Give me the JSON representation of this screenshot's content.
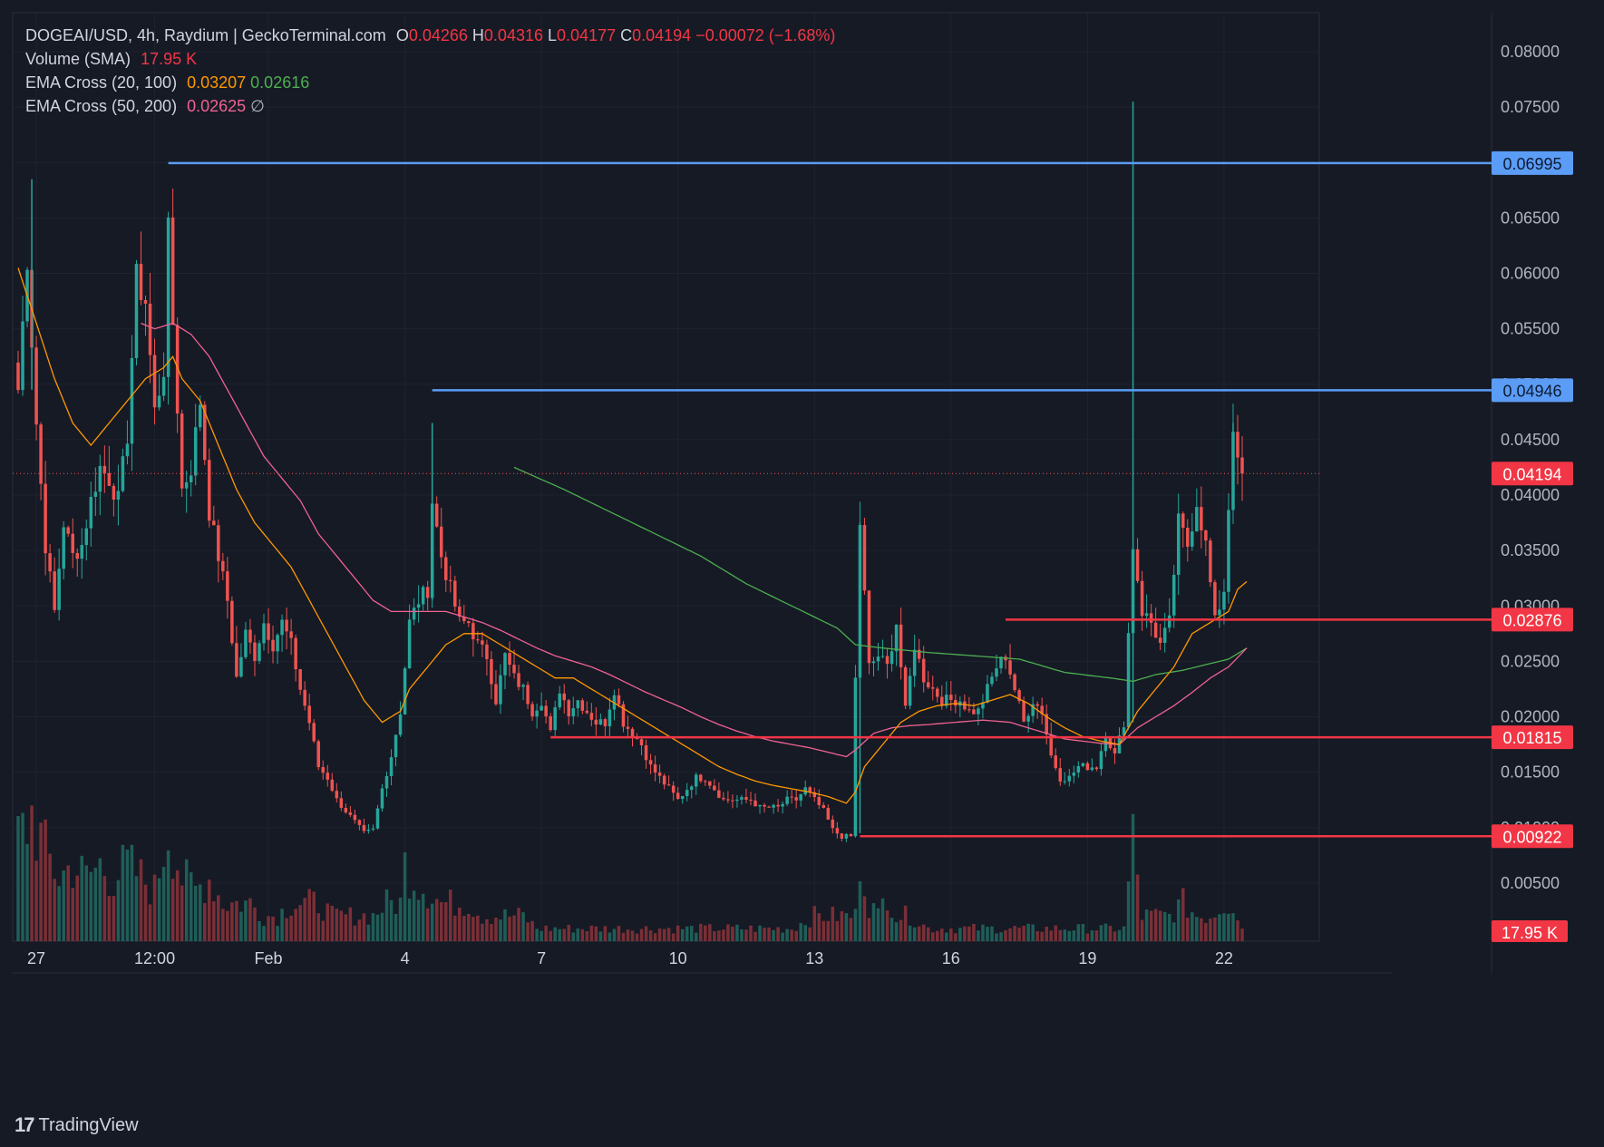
{
  "header": {
    "symbol": "DOGEAI/USD, 4h, Raydium | GeckoTerminal.com",
    "open_label": "O",
    "open": "0.04266",
    "high_label": "H",
    "high": "0.04316",
    "low_label": "L",
    "low": "0.04177",
    "close_label": "C",
    "close": "0.04194",
    "change": "−0.00072 (−1.68%)"
  },
  "indicators": {
    "volume_label": "Volume (SMA)",
    "volume_value": "17.95 K",
    "ema1_label": "EMA Cross (20, 100)",
    "ema1_fast": "0.03207",
    "ema1_slow": "0.02616",
    "ema2_label": "EMA Cross (50, 200)",
    "ema2_fast": "0.02625",
    "ema2_slow": "∅"
  },
  "brand": {
    "name": "TradingView",
    "logo_text": "17"
  },
  "colors": {
    "background": "#161a25",
    "up": "#26a69a",
    "down": "#ef5350",
    "ema20": "#ff9800",
    "ema100": "#4caf50",
    "ema50": "#f06292",
    "blue_line": "#5b9cf6",
    "red_line": "#f23645"
  },
  "chart_data": {
    "type": "candlestick",
    "interval": "4h",
    "y_range": [
      0.0,
      0.0825
    ],
    "y_ticks": [
      "0.00500",
      "0.01000",
      "0.01500",
      "0.02000",
      "0.02500",
      "0.03000",
      "0.03500",
      "0.04000",
      "0.04500",
      "0.05000",
      "0.05500",
      "0.06000",
      "0.06500",
      "0.07000",
      "0.07500",
      "0.08000"
    ],
    "x_ticks": [
      {
        "label": "27",
        "bar": 4
      },
      {
        "label": "12:00",
        "bar": 30
      },
      {
        "label": "Feb",
        "bar": 55
      },
      {
        "label": "4",
        "bar": 85
      },
      {
        "label": "7",
        "bar": 115
      },
      {
        "label": "10",
        "bar": 145
      },
      {
        "label": "13",
        "bar": 175
      },
      {
        "label": "16",
        "bar": 205
      },
      {
        "label": "19",
        "bar": 235
      },
      {
        "label": "22",
        "bar": 265
      }
    ],
    "last_price": "0.04194",
    "volume_last": "17.95 K",
    "horizontal_levels": [
      {
        "price": 0.06995,
        "label": "0.06995",
        "color": "blue",
        "from_bar": 33
      },
      {
        "price": 0.04946,
        "label": "0.04946",
        "color": "blue",
        "from_bar": 91
      },
      {
        "price": 0.02876,
        "label": "0.02876",
        "color": "red",
        "from_bar": 217
      },
      {
        "price": 0.01815,
        "label": "0.01815",
        "color": "red",
        "from_bar": 117
      },
      {
        "price": 0.00922,
        "label": "0.00922",
        "color": "red",
        "from_bar": 185
      }
    ],
    "close_anchors": [
      [
        0,
        0.0495
      ],
      [
        2,
        0.0615
      ],
      [
        4,
        0.0465
      ],
      [
        6,
        0.0355
      ],
      [
        8,
        0.0295
      ],
      [
        10,
        0.0375
      ],
      [
        12,
        0.0345
      ],
      [
        14,
        0.0355
      ],
      [
        16,
        0.0395
      ],
      [
        18,
        0.0425
      ],
      [
        20,
        0.0415
      ],
      [
        22,
        0.0395
      ],
      [
        24,
        0.0455
      ],
      [
        26,
        0.0595
      ],
      [
        28,
        0.0575
      ],
      [
        30,
        0.0475
      ],
      [
        32,
        0.0515
      ],
      [
        33,
        0.0635
      ],
      [
        34,
        0.0555
      ],
      [
        36,
        0.0405
      ],
      [
        38,
        0.0425
      ],
      [
        40,
        0.0485
      ],
      [
        42,
        0.0385
      ],
      [
        44,
        0.0345
      ],
      [
        46,
        0.0305
      ],
      [
        48,
        0.0235
      ],
      [
        50,
        0.0275
      ],
      [
        52,
        0.0255
      ],
      [
        54,
        0.0285
      ],
      [
        56,
        0.0265
      ],
      [
        58,
        0.0285
      ],
      [
        60,
        0.0265
      ],
      [
        62,
        0.0225
      ],
      [
        64,
        0.0195
      ],
      [
        66,
        0.0155
      ],
      [
        68,
        0.0145
      ],
      [
        70,
        0.0125
      ],
      [
        72,
        0.0115
      ],
      [
        74,
        0.0105
      ],
      [
        76,
        0.0095
      ],
      [
        78,
        0.0098
      ],
      [
        80,
        0.0135
      ],
      [
        82,
        0.0165
      ],
      [
        84,
        0.0205
      ],
      [
        86,
        0.0285
      ],
      [
        88,
        0.0305
      ],
      [
        90,
        0.0315
      ],
      [
        91,
        0.0395
      ],
      [
        93,
        0.0345
      ],
      [
        95,
        0.0315
      ],
      [
        97,
        0.0285
      ],
      [
        99,
        0.0285
      ],
      [
        101,
        0.0265
      ],
      [
        103,
        0.0255
      ],
      [
        105,
        0.0215
      ],
      [
        107,
        0.0255
      ],
      [
        109,
        0.0235
      ],
      [
        111,
        0.0225
      ],
      [
        113,
        0.0205
      ],
      [
        115,
        0.0215
      ],
      [
        117,
        0.0185
      ],
      [
        119,
        0.0225
      ],
      [
        121,
        0.0205
      ],
      [
        123,
        0.0215
      ],
      [
        125,
        0.0205
      ],
      [
        127,
        0.0195
      ],
      [
        129,
        0.0195
      ],
      [
        131,
        0.0225
      ],
      [
        133,
        0.0195
      ],
      [
        135,
        0.0185
      ],
      [
        137,
        0.0175
      ],
      [
        139,
        0.0155
      ],
      [
        141,
        0.0145
      ],
      [
        143,
        0.0135
      ],
      [
        145,
        0.0125
      ],
      [
        147,
        0.0135
      ],
      [
        149,
        0.0145
      ],
      [
        151,
        0.0145
      ],
      [
        153,
        0.0135
      ],
      [
        155,
        0.0125
      ],
      [
        157,
        0.0125
      ],
      [
        159,
        0.0125
      ],
      [
        161,
        0.0125
      ],
      [
        163,
        0.0118
      ],
      [
        165,
        0.0118
      ],
      [
        167,
        0.0118
      ],
      [
        169,
        0.0125
      ],
      [
        171,
        0.0125
      ],
      [
        173,
        0.0135
      ],
      [
        175,
        0.0125
      ],
      [
        177,
        0.0115
      ],
      [
        179,
        0.0098
      ],
      [
        181,
        0.0092
      ],
      [
        183,
        0.0092
      ],
      [
        185,
        0.0375
      ],
      [
        187,
        0.0245
      ],
      [
        189,
        0.0255
      ],
      [
        191,
        0.0245
      ],
      [
        193,
        0.0285
      ],
      [
        195,
        0.0205
      ],
      [
        197,
        0.0265
      ],
      [
        199,
        0.0235
      ],
      [
        201,
        0.0225
      ],
      [
        203,
        0.0215
      ],
      [
        205,
        0.0215
      ],
      [
        207,
        0.0215
      ],
      [
        209,
        0.0205
      ],
      [
        211,
        0.0205
      ],
      [
        213,
        0.0225
      ],
      [
        215,
        0.0245
      ],
      [
        217,
        0.0255
      ],
      [
        219,
        0.0225
      ],
      [
        221,
        0.0195
      ],
      [
        223,
        0.0215
      ],
      [
        225,
        0.0205
      ],
      [
        227,
        0.0165
      ],
      [
        229,
        0.0145
      ],
      [
        231,
        0.0145
      ],
      [
        233,
        0.0155
      ],
      [
        235,
        0.0155
      ],
      [
        237,
        0.0155
      ],
      [
        239,
        0.0185
      ],
      [
        241,
        0.0165
      ],
      [
        243,
        0.0195
      ],
      [
        245,
        0.0355
      ],
      [
        247,
        0.0295
      ],
      [
        249,
        0.0285
      ],
      [
        251,
        0.0265
      ],
      [
        253,
        0.0285
      ],
      [
        255,
        0.0375
      ],
      [
        257,
        0.0355
      ],
      [
        259,
        0.0395
      ],
      [
        261,
        0.0355
      ],
      [
        263,
        0.0285
      ],
      [
        265,
        0.0315
      ],
      [
        267,
        0.0465
      ],
      [
        268,
        0.0425
      ],
      [
        269,
        0.0419
      ]
    ],
    "volume_anchors": [
      [
        0,
        8
      ],
      [
        3,
        10
      ],
      [
        6,
        7
      ],
      [
        9,
        5
      ],
      [
        12,
        6
      ],
      [
        15,
        5
      ],
      [
        18,
        6
      ],
      [
        21,
        5
      ],
      [
        24,
        6
      ],
      [
        27,
        5
      ],
      [
        30,
        4
      ],
      [
        33,
        9
      ],
      [
        36,
        5
      ],
      [
        39,
        4
      ],
      [
        42,
        5
      ],
      [
        45,
        3
      ],
      [
        48,
        3
      ],
      [
        51,
        3
      ],
      [
        54,
        2
      ],
      [
        57,
        2
      ],
      [
        60,
        3
      ],
      [
        63,
        3
      ],
      [
        66,
        3
      ],
      [
        69,
        2
      ],
      [
        72,
        2
      ],
      [
        75,
        2
      ],
      [
        78,
        2
      ],
      [
        81,
        3
      ],
      [
        84,
        3
      ],
      [
        85,
        6
      ],
      [
        87,
        5
      ],
      [
        90,
        4
      ],
      [
        93,
        3
      ],
      [
        96,
        3
      ],
      [
        99,
        3
      ],
      [
        102,
        2
      ],
      [
        105,
        2
      ],
      [
        108,
        2
      ],
      [
        111,
        2
      ],
      [
        114,
        1
      ],
      [
        117,
        1
      ],
      [
        120,
        1
      ],
      [
        125,
        1
      ],
      [
        130,
        1
      ],
      [
        135,
        1
      ],
      [
        140,
        1
      ],
      [
        145,
        1
      ],
      [
        150,
        1
      ],
      [
        155,
        1
      ],
      [
        160,
        1
      ],
      [
        165,
        1
      ],
      [
        170,
        1
      ],
      [
        175,
        2
      ],
      [
        180,
        2
      ],
      [
        184,
        2
      ],
      [
        185,
        7
      ],
      [
        187,
        3
      ],
      [
        189,
        2
      ],
      [
        191,
        4
      ],
      [
        193,
        2
      ],
      [
        196,
        2
      ],
      [
        200,
        1
      ],
      [
        205,
        1
      ],
      [
        210,
        1
      ],
      [
        215,
        1
      ],
      [
        220,
        1
      ],
      [
        225,
        1
      ],
      [
        230,
        1
      ],
      [
        235,
        1
      ],
      [
        240,
        1
      ],
      [
        243,
        1
      ],
      [
        245,
        8
      ],
      [
        247,
        2
      ],
      [
        250,
        2
      ],
      [
        253,
        2
      ],
      [
        256,
        3
      ],
      [
        259,
        2
      ],
      [
        262,
        2
      ],
      [
        265,
        3
      ],
      [
        267,
        3
      ],
      [
        269,
        1
      ]
    ],
    "ema20_anchors": [
      [
        0,
        0.0605
      ],
      [
        4,
        0.0555
      ],
      [
        8,
        0.0505
      ],
      [
        12,
        0.0465
      ],
      [
        16,
        0.0445
      ],
      [
        20,
        0.0465
      ],
      [
        24,
        0.0485
      ],
      [
        28,
        0.0505
      ],
      [
        32,
        0.0515
      ],
      [
        34,
        0.0525
      ],
      [
        36,
        0.0505
      ],
      [
        40,
        0.0485
      ],
      [
        44,
        0.0445
      ],
      [
        48,
        0.0405
      ],
      [
        52,
        0.0375
      ],
      [
        56,
        0.0355
      ],
      [
        60,
        0.0335
      ],
      [
        64,
        0.0305
      ],
      [
        68,
        0.0275
      ],
      [
        72,
        0.0245
      ],
      [
        76,
        0.0215
      ],
      [
        80,
        0.0195
      ],
      [
        84,
        0.0205
      ],
      [
        86,
        0.0225
      ],
      [
        90,
        0.0245
      ],
      [
        94,
        0.0265
      ],
      [
        98,
        0.0275
      ],
      [
        102,
        0.0275
      ],
      [
        106,
        0.0265
      ],
      [
        110,
        0.0255
      ],
      [
        114,
        0.0245
      ],
      [
        118,
        0.0235
      ],
      [
        122,
        0.0235
      ],
      [
        126,
        0.0225
      ],
      [
        130,
        0.0215
      ],
      [
        134,
        0.0205
      ],
      [
        138,
        0.0195
      ],
      [
        142,
        0.0185
      ],
      [
        146,
        0.0175
      ],
      [
        150,
        0.0165
      ],
      [
        154,
        0.0155
      ],
      [
        158,
        0.0148
      ],
      [
        162,
        0.0142
      ],
      [
        166,
        0.0138
      ],
      [
        170,
        0.0135
      ],
      [
        174,
        0.0132
      ],
      [
        178,
        0.0128
      ],
      [
        182,
        0.0122
      ],
      [
        184,
        0.0132
      ],
      [
        186,
        0.0155
      ],
      [
        190,
        0.0175
      ],
      [
        194,
        0.0195
      ],
      [
        198,
        0.0205
      ],
      [
        202,
        0.021
      ],
      [
        206,
        0.0212
      ],
      [
        210,
        0.021
      ],
      [
        214,
        0.0215
      ],
      [
        218,
        0.022
      ],
      [
        222,
        0.0212
      ],
      [
        226,
        0.02
      ],
      [
        230,
        0.019
      ],
      [
        234,
        0.0182
      ],
      [
        238,
        0.0178
      ],
      [
        242,
        0.0175
      ],
      [
        246,
        0.0205
      ],
      [
        250,
        0.0225
      ],
      [
        254,
        0.0245
      ],
      [
        258,
        0.0275
      ],
      [
        262,
        0.0285
      ],
      [
        266,
        0.0295
      ],
      [
        268,
        0.0315
      ],
      [
        270,
        0.0322
      ]
    ],
    "ema100_anchors": [
      [
        109,
        0.0425
      ],
      [
        120,
        0.0405
      ],
      [
        130,
        0.0385
      ],
      [
        140,
        0.0365
      ],
      [
        150,
        0.0345
      ],
      [
        160,
        0.032
      ],
      [
        170,
        0.03
      ],
      [
        180,
        0.028
      ],
      [
        184,
        0.0265
      ],
      [
        190,
        0.0262
      ],
      [
        200,
        0.0258
      ],
      [
        210,
        0.0255
      ],
      [
        220,
        0.0252
      ],
      [
        230,
        0.024
      ],
      [
        240,
        0.0235
      ],
      [
        245,
        0.0232
      ],
      [
        250,
        0.0238
      ],
      [
        256,
        0.0242
      ],
      [
        262,
        0.0248
      ],
      [
        266,
        0.0252
      ],
      [
        270,
        0.0262
      ]
    ],
    "ema50_anchors": [
      [
        27,
        0.0555
      ],
      [
        30,
        0.055
      ],
      [
        34,
        0.0555
      ],
      [
        38,
        0.0545
      ],
      [
        42,
        0.0525
      ],
      [
        46,
        0.0495
      ],
      [
        50,
        0.0465
      ],
      [
        54,
        0.0435
      ],
      [
        58,
        0.0415
      ],
      [
        62,
        0.0395
      ],
      [
        66,
        0.0365
      ],
      [
        70,
        0.0345
      ],
      [
        74,
        0.0325
      ],
      [
        78,
        0.0305
      ],
      [
        82,
        0.0295
      ],
      [
        86,
        0.0295
      ],
      [
        90,
        0.0295
      ],
      [
        94,
        0.0295
      ],
      [
        98,
        0.029
      ],
      [
        102,
        0.0285
      ],
      [
        106,
        0.0278
      ],
      [
        110,
        0.027
      ],
      [
        114,
        0.0262
      ],
      [
        118,
        0.0255
      ],
      [
        122,
        0.025
      ],
      [
        126,
        0.0245
      ],
      [
        130,
        0.0238
      ],
      [
        134,
        0.023
      ],
      [
        138,
        0.0222
      ],
      [
        142,
        0.0215
      ],
      [
        146,
        0.0208
      ],
      [
        150,
        0.02
      ],
      [
        154,
        0.0193
      ],
      [
        158,
        0.0187
      ],
      [
        162,
        0.0182
      ],
      [
        166,
        0.0178
      ],
      [
        170,
        0.0175
      ],
      [
        174,
        0.0172
      ],
      [
        178,
        0.0168
      ],
      [
        182,
        0.0164
      ],
      [
        184,
        0.017
      ],
      [
        188,
        0.0185
      ],
      [
        192,
        0.019
      ],
      [
        196,
        0.0192
      ],
      [
        200,
        0.0193
      ],
      [
        206,
        0.0195
      ],
      [
        212,
        0.0197
      ],
      [
        218,
        0.0195
      ],
      [
        222,
        0.019
      ],
      [
        226,
        0.0185
      ],
      [
        230,
        0.018
      ],
      [
        234,
        0.0178
      ],
      [
        238,
        0.0176
      ],
      [
        242,
        0.0175
      ],
      [
        246,
        0.019
      ],
      [
        250,
        0.02
      ],
      [
        254,
        0.021
      ],
      [
        258,
        0.0222
      ],
      [
        262,
        0.0235
      ],
      [
        266,
        0.0245
      ],
      [
        270,
        0.0262
      ]
    ]
  }
}
